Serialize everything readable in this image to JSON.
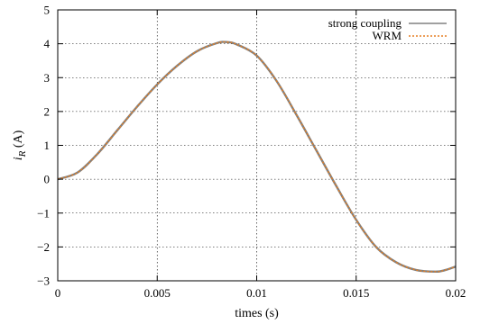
{
  "chart_data": {
    "type": "line",
    "xlabel": "times (s)",
    "ylabel_main": "i",
    "ylabel_sub": "R",
    "ylabel_unit": " (A)",
    "xlim": [
      0,
      0.02
    ],
    "ylim": [
      -3,
      5
    ],
    "x_ticks": [
      0,
      0.005,
      0.01,
      0.015,
      0.02
    ],
    "x_tick_labels": [
      "0",
      "0.005",
      "0.01",
      "0.015",
      "0.02"
    ],
    "y_ticks": [
      -3,
      -2,
      -1,
      0,
      1,
      2,
      3,
      4,
      5
    ],
    "y_tick_labels": [
      "−3",
      "−2",
      "−1",
      "0",
      "1",
      "2",
      "3",
      "4",
      "5"
    ],
    "grid": true,
    "legend_position": "top-right",
    "x": [
      0,
      0.001,
      0.002,
      0.003,
      0.004,
      0.005,
      0.006,
      0.007,
      0.008,
      0.0085,
      0.009,
      0.01,
      0.011,
      0.012,
      0.013,
      0.014,
      0.015,
      0.016,
      0.017,
      0.018,
      0.019,
      0.0195,
      0.02
    ],
    "series": [
      {
        "name": "strong coupling",
        "color": "#808080",
        "values": [
          0,
          0.2,
          0.75,
          1.45,
          2.15,
          2.8,
          3.35,
          3.78,
          4.02,
          4.05,
          3.98,
          3.65,
          2.9,
          1.9,
          0.85,
          -0.2,
          -1.2,
          -2.0,
          -2.45,
          -2.68,
          -2.73,
          -2.68,
          -2.58
        ]
      },
      {
        "name": "WRM",
        "color": "#e67e22",
        "values": [
          0,
          0.2,
          0.75,
          1.45,
          2.15,
          2.8,
          3.35,
          3.78,
          4.02,
          4.05,
          3.98,
          3.65,
          2.9,
          1.9,
          0.85,
          -0.2,
          -1.2,
          -2.0,
          -2.45,
          -2.68,
          -2.73,
          -2.68,
          -2.58
        ]
      }
    ]
  }
}
